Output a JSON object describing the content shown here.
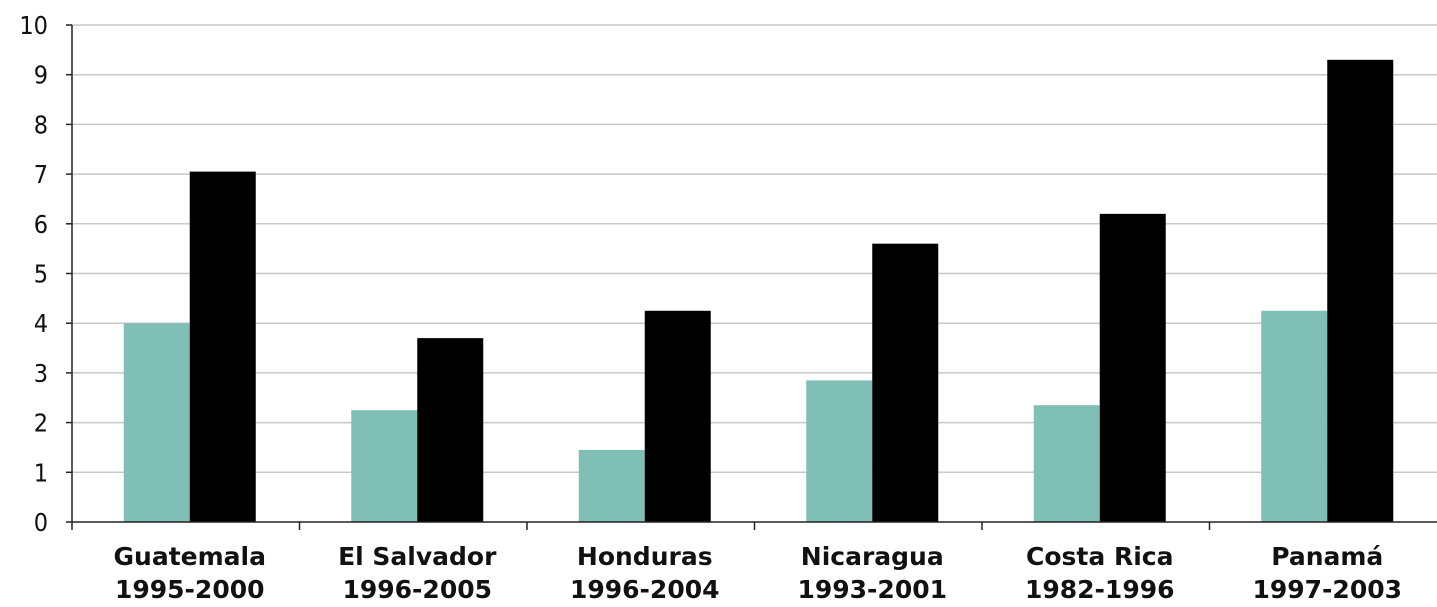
{
  "chart_data": {
    "type": "bar",
    "categories": [
      [
        "Guatemala",
        "1995-2000"
      ],
      [
        "El Salvador",
        "1996-2005"
      ],
      [
        "Honduras",
        "1996-2004"
      ],
      [
        "Nicaragua",
        "1993-2001"
      ],
      [
        "Costa Rica",
        "1982-1996"
      ],
      [
        "Panamá",
        "1997-2003"
      ]
    ],
    "series": [
      {
        "color": "#7fbfb5",
        "values": [
          4.0,
          2.25,
          1.45,
          2.85,
          2.35,
          4.25
        ]
      },
      {
        "color": "#000000",
        "values": [
          7.05,
          3.7,
          4.25,
          5.6,
          6.2,
          9.3
        ]
      }
    ],
    "ylim": [
      0,
      10
    ],
    "yticks": [
      "0",
      "1",
      "2",
      "3",
      "4",
      "5",
      "6",
      "7",
      "8",
      "9",
      "10"
    ],
    "grid": true,
    "legend": "none",
    "title": "",
    "xlabel": "",
    "ylabel": ""
  }
}
